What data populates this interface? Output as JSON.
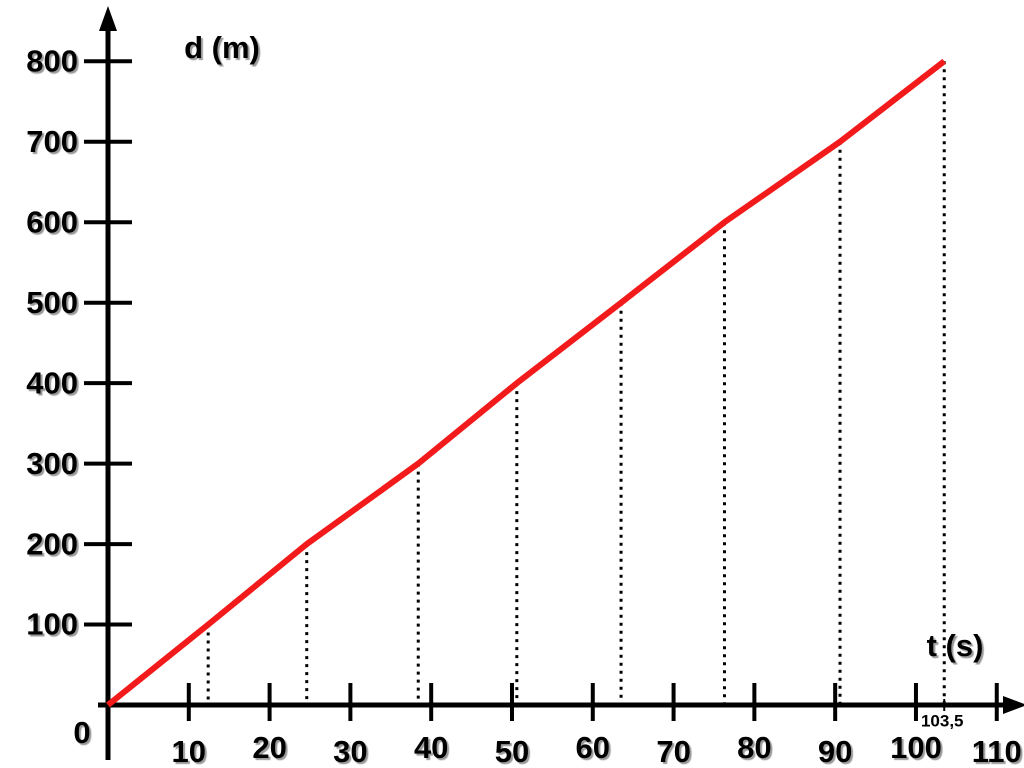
{
  "chart_data": {
    "type": "line",
    "y_label": "d (m)",
    "x_label": "t (s)",
    "x": [
      0,
      12.4,
      24.6,
      38.4,
      50.6,
      63.5,
      76.3,
      90.6,
      103.5
    ],
    "series": [
      {
        "color": "#f21a1a",
        "values": [
          0,
          100,
          200,
          300,
          400,
          500,
          600,
          700,
          800
        ]
      }
    ],
    "xlim": [
      0,
      113
    ],
    "ylim": [
      0,
      865
    ],
    "xticks": [
      10,
      20,
      30,
      40,
      50,
      60,
      70,
      80,
      90,
      100,
      110,
      {
        "value": 103.5,
        "label": "103,5"
      }
    ],
    "yticks": [
      0,
      100,
      200,
      300,
      400,
      500,
      600,
      700,
      800
    ],
    "drop_lines": true
  }
}
